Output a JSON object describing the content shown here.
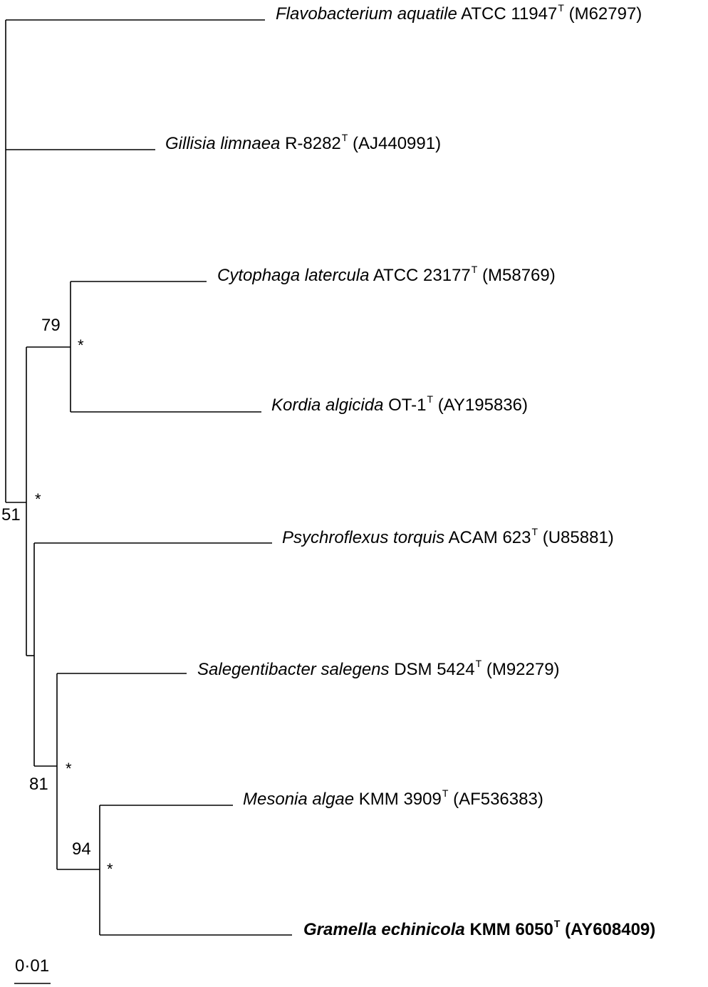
{
  "taxa": [
    {
      "genus_species": "Flavobacterium aquatile",
      "strain": "ATCC 11947",
      "sup": "T",
      "accession": "(M62797)",
      "bold": false
    },
    {
      "genus_species": "Gillisia limnaea",
      "strain": "R-8282",
      "sup": "T",
      "accession": "(AJ440991)",
      "bold": false
    },
    {
      "genus_species": "Cytophaga latercula",
      "strain": "ATCC 23177",
      "sup": "T",
      "accession": "(M58769)",
      "bold": false
    },
    {
      "genus_species": "Kordia algicida",
      "strain": "OT-1",
      "sup": "T",
      "accession": "(AY195836)",
      "bold": false
    },
    {
      "genus_species": "Psychroflexus torquis",
      "strain": "ACAM 623",
      "sup": "T",
      "accession": "(U85881)",
      "bold": false
    },
    {
      "genus_species": "Salegentibacter salegens",
      "strain": "DSM 5424",
      "sup": "T",
      "accession": "(M92279)",
      "bold": false
    },
    {
      "genus_species": "Mesonia algae",
      "strain": "KMM 3909",
      "sup": "T",
      "accession": "(AF536383)",
      "bold": false
    },
    {
      "genus_species": "Gramella echinicola",
      "strain": "KMM 6050",
      "sup": "T",
      "accession": "(AY608409)",
      "bold": true
    }
  ],
  "bootstrap": [
    "79",
    "51",
    "81",
    "94"
  ],
  "node_marker": "*",
  "scale": {
    "label": "0·01"
  }
}
